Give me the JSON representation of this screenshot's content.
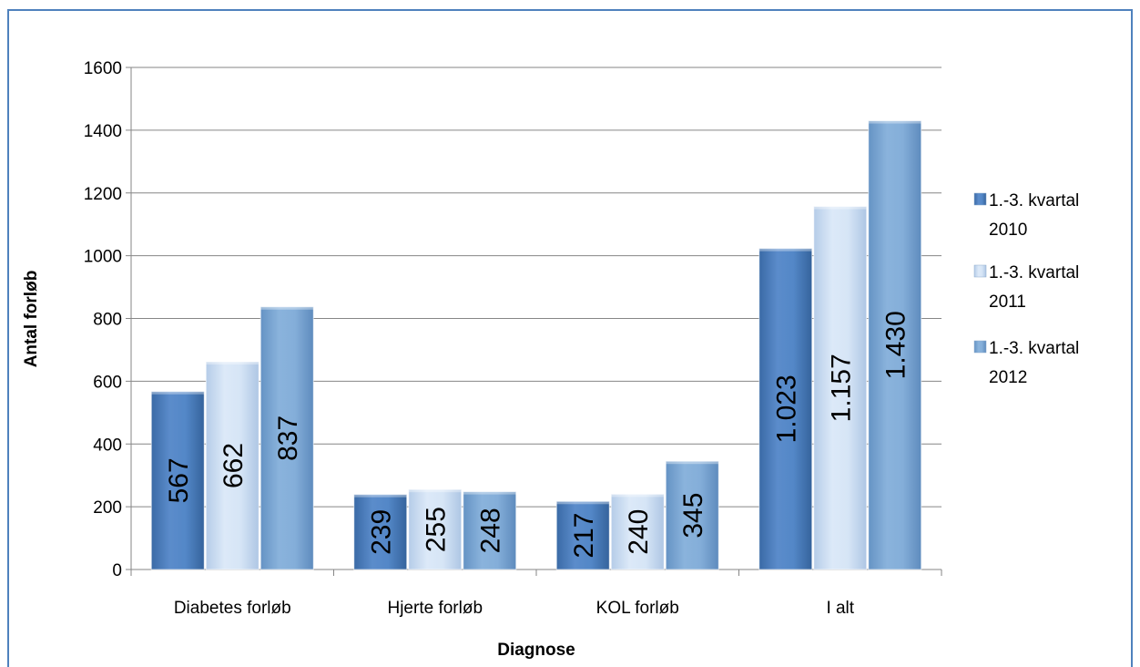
{
  "chart_data": {
    "type": "bar",
    "xlabel": "Diagnose",
    "ylabel": "Antal forløb",
    "ylim": [
      0,
      1600
    ],
    "yticks": [
      "0",
      "200",
      "400",
      "600",
      "800",
      "1000",
      "1200",
      "1400",
      "1600"
    ],
    "categories": [
      "Diabetes forløb",
      "Hjerte forløb",
      "KOL forløb",
      "I alt"
    ],
    "grid": true,
    "legend_position": "right",
    "series": [
      {
        "name": "1.-3. kvartal 2010",
        "legend_lines": [
          "1.-3. kvartal",
          "2010"
        ],
        "color": "#4F81BD",
        "values": [
          567,
          239,
          217,
          1023
        ],
        "labels": [
          "567",
          "239",
          "217",
          "1.023"
        ]
      },
      {
        "name": "1.-3. kvartal 2011",
        "legend_lines": [
          "1.-3. kvartal",
          "2011"
        ],
        "color": "#C6D9F1",
        "values": [
          662,
          255,
          240,
          1157
        ],
        "labels": [
          "662",
          "255",
          "240",
          "1.157"
        ]
      },
      {
        "name": "1.-3. kvartal 2012",
        "legend_lines": [
          "1.-3. kvartal",
          "2012"
        ],
        "color": "#7BA7D3",
        "values": [
          837,
          248,
          345,
          1430
        ],
        "labels": [
          "837",
          "248",
          "345",
          "1.430"
        ]
      }
    ]
  }
}
